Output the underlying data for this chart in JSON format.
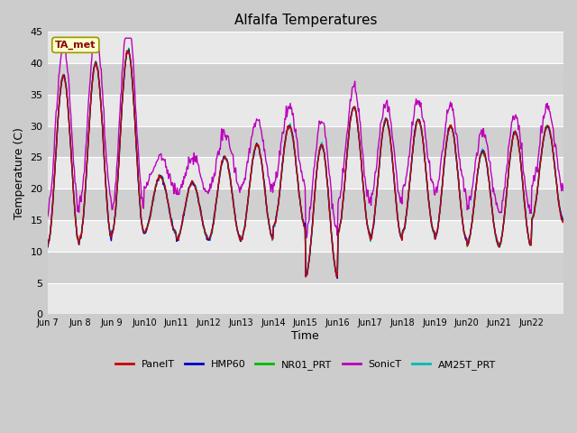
{
  "title": "Alfalfa Temperatures",
  "ylabel": "Temperature (C)",
  "xlabel": "Time",
  "annotation_text": "TA_met",
  "annotation_color": "#8B0000",
  "annotation_bg": "#FFFFCC",
  "annotation_border": "#999900",
  "ylim": [
    0,
    45
  ],
  "yticks": [
    0,
    5,
    10,
    15,
    20,
    25,
    30,
    35,
    40,
    45
  ],
  "series_colors": {
    "PanelT": "#CC0000",
    "HMP60": "#0000CC",
    "NR01_PRT": "#00BB00",
    "SonicT": "#BB00BB",
    "AM25T_PRT": "#00BBBB"
  },
  "series_order": [
    "SonicT",
    "NR01_PRT",
    "AM25T_PRT",
    "HMP60",
    "PanelT"
  ],
  "line_width": 1.0,
  "fig_bg_color": "#CCCCCC",
  "plot_bg_light": "#E8E8E8",
  "plot_bg_dark": "#D0D0D0",
  "grid_color": "#FFFFFF",
  "grid_lw": 1.0,
  "tick_labels": [
    "Jun 7",
    "Jun 8",
    "Jun 9",
    "Jun10",
    "Jun11",
    "Jun12",
    "Jun13",
    "Jun14",
    "Jun15",
    "Jun16",
    "Jun17",
    "Jun18",
    "Jun19",
    "Jun20",
    "Jun21",
    "Jun22"
  ],
  "n_days": 16,
  "points_per_day": 48,
  "day_maxes_base": [
    38,
    40,
    42,
    22,
    21,
    25,
    27,
    30,
    27,
    33,
    31,
    31,
    30,
    26,
    29,
    30
  ],
  "day_mins_base": [
    11,
    12,
    13,
    13,
    12,
    12,
    12,
    14,
    6,
    13,
    12,
    13,
    12,
    11,
    11,
    15
  ],
  "sonic_extra_max": [
    5,
    5,
    5,
    3,
    4,
    4,
    4,
    3,
    4,
    3,
    3,
    3,
    3,
    3,
    3,
    3
  ],
  "sonic_extra_min": [
    5,
    6,
    4,
    7,
    7,
    8,
    8,
    7,
    7,
    5,
    6,
    7,
    7,
    6,
    5,
    5
  ]
}
